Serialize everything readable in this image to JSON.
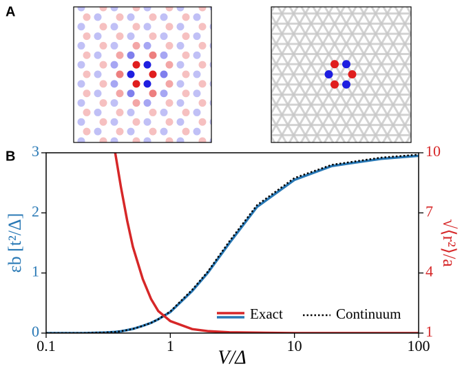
{
  "panels": {
    "a": "A",
    "b": "B"
  },
  "chart_data": {
    "type": "line",
    "xlabel": "V/Δ",
    "ylabel": "εb [t²/Δ]",
    "y2label": "√⟨r²⟩/a",
    "xscale": "log",
    "x": [
      0.1,
      0.2,
      0.3,
      0.36,
      0.4,
      0.45,
      0.5,
      0.6,
      0.7,
      0.8,
      1,
      1.5,
      2,
      3,
      5,
      10,
      20,
      50,
      100
    ],
    "series": [
      {
        "name": "Exact",
        "color": "#2878b5",
        "style": "solid",
        "values": [
          0,
          0,
          0.01,
          0.02,
          0.03,
          0.05,
          0.07,
          0.12,
          0.17,
          0.23,
          0.35,
          0.7,
          1.0,
          1.5,
          2.1,
          2.55,
          2.78,
          2.9,
          2.95
        ]
      },
      {
        "name": "Continuum",
        "color": "#000000",
        "style": "dotted",
        "values": [
          0,
          0,
          0.01,
          0.02,
          0.03,
          0.05,
          0.07,
          0.12,
          0.17,
          0.23,
          0.36,
          0.72,
          1.02,
          1.53,
          2.13,
          2.58,
          2.8,
          2.92,
          2.97
        ]
      },
      {
        "color": "#d62728",
        "axis": "y2",
        "style": "solid",
        "values": [
          null,
          null,
          null,
          10,
          8.3,
          6.6,
          5.3,
          3.7,
          2.7,
          2.1,
          1.6,
          1.2,
          1.1,
          1.04,
          1.02,
          1.0,
          1.0,
          1.0,
          1.0
        ]
      }
    ],
    "xlim": [
      0.1,
      100
    ],
    "xticks": [
      0.1,
      1,
      10,
      100
    ],
    "ylim": [
      0,
      3
    ],
    "yticks": [
      0,
      1,
      2,
      3
    ],
    "y2lim": [
      1,
      10
    ],
    "y2ticks": [
      1,
      4,
      7,
      10
    ],
    "legend": "lower right"
  }
}
